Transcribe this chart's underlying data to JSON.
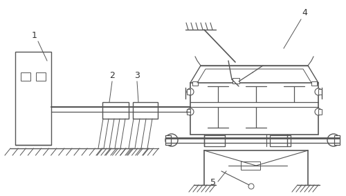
{
  "background_color": "#ffffff",
  "line_color": "#555555",
  "label_color": "#333333",
  "label_fontsize": 9,
  "fig_width": 5.0,
  "fig_height": 2.84,
  "dpi": 100
}
